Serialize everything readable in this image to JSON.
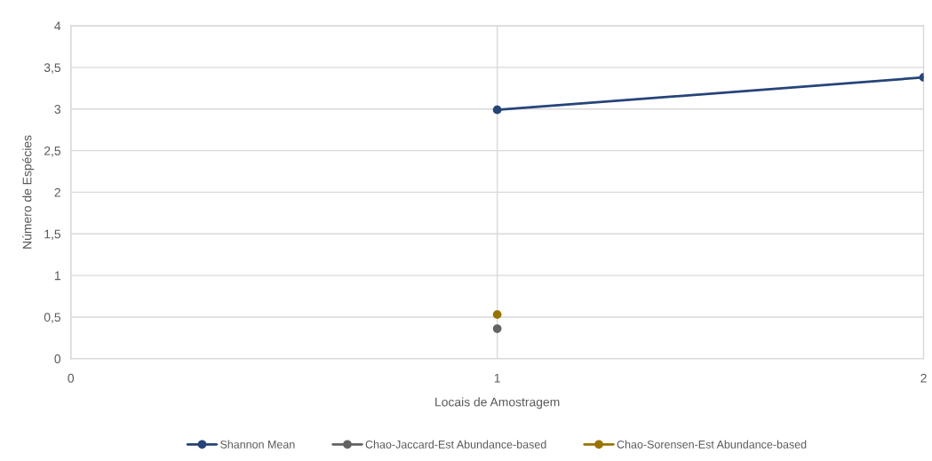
{
  "chart_data": {
    "type": "line",
    "xlabel": "Locais de Amostragem",
    "ylabel": "Número de Espécies",
    "x": [
      1,
      2
    ],
    "xlim": [
      0,
      2
    ],
    "xticks": [
      0,
      1,
      2
    ],
    "ylim": [
      0,
      4
    ],
    "yticks": [
      0,
      {
        "value": 0.5,
        "label": "0,5"
      },
      1,
      {
        "value": 1.5,
        "label": "1,5"
      },
      2,
      {
        "value": 2.5,
        "label": "2,5"
      },
      3,
      {
        "value": 3.5,
        "label": "3,5"
      },
      4
    ],
    "grid": true,
    "legend": "bottom",
    "marker": "circle",
    "line_style": "solid",
    "series": [
      {
        "name": "Shannon Mean",
        "color": "#264478",
        "values": [
          2.99,
          3.38
        ]
      },
      {
        "name": "Chao-Jaccard-Est Abundance-based",
        "color": "#636363",
        "values": [
          0.36,
          null
        ]
      },
      {
        "name": "Chao-Sorensen-Est Abundance-based",
        "color": "#997300",
        "values": [
          0.53,
          null
        ]
      }
    ]
  }
}
